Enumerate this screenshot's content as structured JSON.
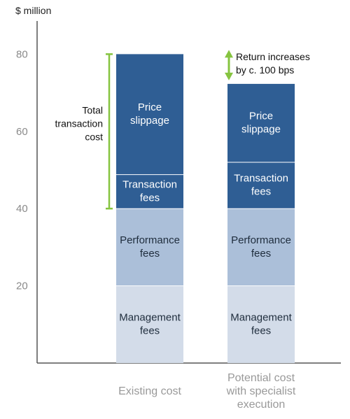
{
  "chart_data": {
    "type": "bar",
    "stacked": true,
    "unit_label": "$ million",
    "yticks": [
      20,
      40,
      60,
      80
    ],
    "ylim": [
      0,
      89
    ],
    "grid": false,
    "categories": [
      [
        "Existing cost"
      ],
      [
        "Potential cost",
        "with specialist",
        "execution"
      ]
    ],
    "series": [
      {
        "name": [
          "Management",
          "fees"
        ],
        "values": [
          20,
          20
        ],
        "color": "#d3dce9",
        "text_color": "#1f2d3d"
      },
      {
        "name": [
          "Performance",
          "fees"
        ],
        "values": [
          20,
          20
        ],
        "color": "#abbfd9",
        "text_color": "#1f2d3d"
      },
      {
        "name": [
          "Transaction",
          "fees"
        ],
        "values": [
          8.8,
          12
        ],
        "color": "#2f5e94",
        "text_color": "#ffffff"
      },
      {
        "name": [
          "Price",
          "slippage"
        ],
        "values": [
          31.2,
          20.3
        ],
        "color": "#2f5e94",
        "text_color": "#ffffff"
      }
    ],
    "annotations": {
      "total_transaction_cost": [
        "Total",
        "transaction",
        "cost"
      ],
      "return_increase": [
        "Return increases",
        "by c. 100 bps"
      ],
      "accent_color": "#86c440"
    }
  }
}
